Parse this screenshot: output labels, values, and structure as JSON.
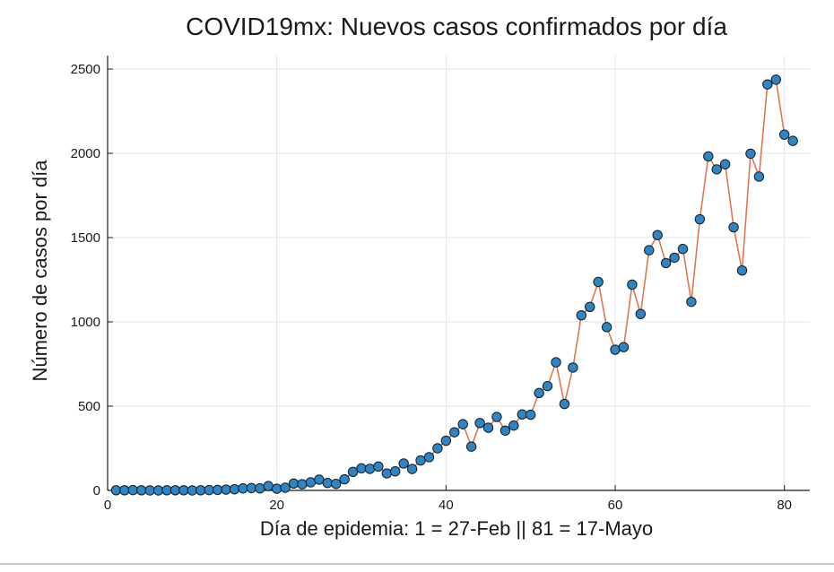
{
  "chart_data": {
    "type": "line",
    "title": "COVID19mx: Nuevos casos confirmados por día",
    "xlabel": "Día de epidemia: 1 = 27-Feb || 81 = 17-Mayo",
    "ylabel": "Número de casos por día",
    "xlim": [
      0,
      83
    ],
    "ylim": [
      0,
      2580
    ],
    "xticks": [
      0,
      20,
      40,
      60,
      80
    ],
    "yticks": [
      0,
      500,
      1000,
      1500,
      2000,
      2500
    ],
    "grid": true,
    "series": [
      {
        "name": "Nuevos casos confirmados por día",
        "x": [
          1,
          2,
          3,
          4,
          5,
          6,
          7,
          8,
          9,
          10,
          11,
          12,
          13,
          14,
          15,
          16,
          17,
          18,
          19,
          20,
          21,
          22,
          23,
          24,
          25,
          26,
          27,
          28,
          29,
          30,
          31,
          32,
          33,
          34,
          35,
          36,
          37,
          38,
          39,
          40,
          41,
          42,
          43,
          44,
          45,
          46,
          47,
          48,
          49,
          50,
          51,
          52,
          53,
          54,
          55,
          56,
          57,
          58,
          59,
          60,
          61,
          62,
          63,
          64,
          65,
          66,
          67,
          68,
          69,
          70,
          71,
          72,
          73,
          74,
          75,
          76,
          77,
          78,
          79,
          80,
          81
        ],
        "y": [
          1,
          1,
          2,
          1,
          0,
          0,
          1,
          1,
          1,
          0,
          1,
          2,
          3,
          5,
          7,
          12,
          14,
          12,
          26,
          10,
          16,
          41,
          37,
          48,
          64,
          44,
          39,
          66,
          110,
          131,
          128,
          142,
          101,
          113,
          160,
          127,
          178,
          197,
          250,
          295,
          345,
          393,
          260,
          400,
          372,
          436,
          355,
          385,
          451,
          449,
          578,
          619,
          760,
          513,
          729,
          1039,
          1089,
          1237,
          969,
          835,
          850,
          1221,
          1047,
          1425,
          1515,
          1349,
          1381,
          1433,
          1119,
          1609,
          1982,
          1905,
          1935,
          1561,
          1305,
          1998,
          1862,
          2409,
          2437,
          2111,
          2074
        ],
        "line_color": "#e0764f",
        "marker_color": "#2d85c5",
        "marker_edge": "#1a1a1a"
      }
    ]
  }
}
